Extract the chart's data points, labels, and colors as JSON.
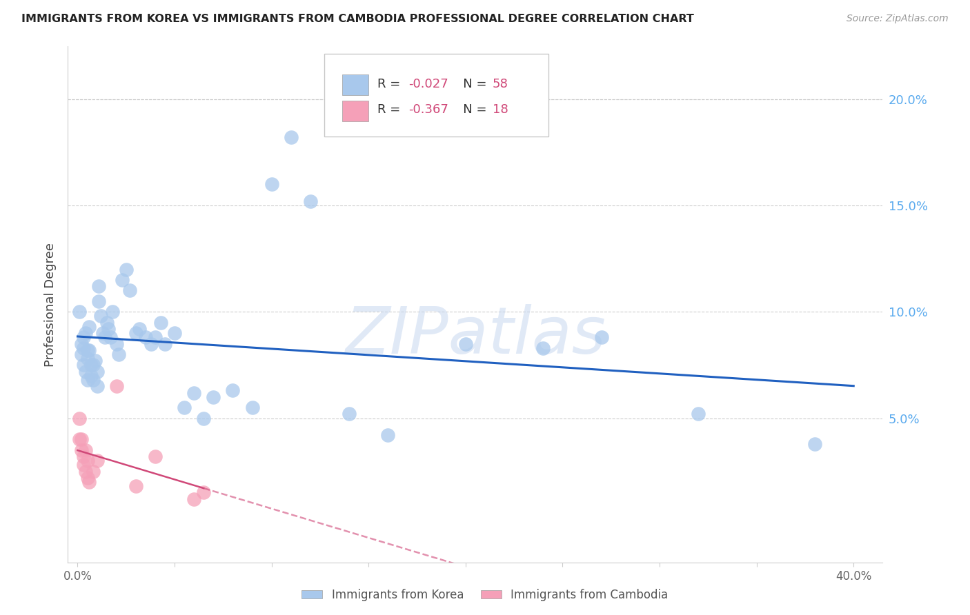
{
  "title": "IMMIGRANTS FROM KOREA VS IMMIGRANTS FROM CAMBODIA PROFESSIONAL DEGREE CORRELATION CHART",
  "source": "Source: ZipAtlas.com",
  "ylabel": "Professional Degree",
  "xlim": [
    -0.005,
    0.415
  ],
  "ylim": [
    -0.018,
    0.225
  ],
  "y_ticks_right": [
    0.05,
    0.1,
    0.15,
    0.2
  ],
  "y_tick_labels_right": [
    "5.0%",
    "10.0%",
    "15.0%",
    "20.0%"
  ],
  "korea_R": "-0.027",
  "korea_N": "58",
  "cambodia_R": "-0.367",
  "cambodia_N": "18",
  "korea_color": "#a8c8ec",
  "korea_line_color": "#2060c0",
  "cambodia_color": "#f5a0b8",
  "cambodia_line_color": "#d04878",
  "watermark_color": "#c8d8f0",
  "korea_x": [
    0.001,
    0.002,
    0.002,
    0.003,
    0.003,
    0.003,
    0.004,
    0.004,
    0.005,
    0.005,
    0.005,
    0.006,
    0.006,
    0.007,
    0.007,
    0.008,
    0.008,
    0.009,
    0.01,
    0.01,
    0.011,
    0.011,
    0.012,
    0.013,
    0.014,
    0.015,
    0.016,
    0.017,
    0.018,
    0.02,
    0.021,
    0.023,
    0.025,
    0.027,
    0.03,
    0.032,
    0.035,
    0.038,
    0.04,
    0.043,
    0.045,
    0.05,
    0.055,
    0.06,
    0.065,
    0.07,
    0.08,
    0.09,
    0.1,
    0.11,
    0.12,
    0.14,
    0.16,
    0.2,
    0.24,
    0.27,
    0.32,
    0.38
  ],
  "korea_y": [
    0.1,
    0.08,
    0.085,
    0.083,
    0.075,
    0.088,
    0.072,
    0.09,
    0.078,
    0.068,
    0.082,
    0.082,
    0.093,
    0.075,
    0.07,
    0.075,
    0.068,
    0.077,
    0.065,
    0.072,
    0.112,
    0.105,
    0.098,
    0.09,
    0.088,
    0.095,
    0.092,
    0.088,
    0.1,
    0.085,
    0.08,
    0.115,
    0.12,
    0.11,
    0.09,
    0.092,
    0.088,
    0.085,
    0.088,
    0.095,
    0.085,
    0.09,
    0.055,
    0.062,
    0.05,
    0.06,
    0.063,
    0.055,
    0.16,
    0.182,
    0.152,
    0.052,
    0.042,
    0.085,
    0.083,
    0.088,
    0.052,
    0.038
  ],
  "cambodia_x": [
    0.001,
    0.001,
    0.002,
    0.002,
    0.003,
    0.003,
    0.004,
    0.004,
    0.005,
    0.005,
    0.006,
    0.008,
    0.01,
    0.02,
    0.03,
    0.04,
    0.06,
    0.065
  ],
  "cambodia_y": [
    0.05,
    0.04,
    0.04,
    0.035,
    0.032,
    0.028,
    0.025,
    0.035,
    0.03,
    0.022,
    0.02,
    0.025,
    0.03,
    0.065,
    0.018,
    0.032,
    0.012,
    0.015
  ]
}
